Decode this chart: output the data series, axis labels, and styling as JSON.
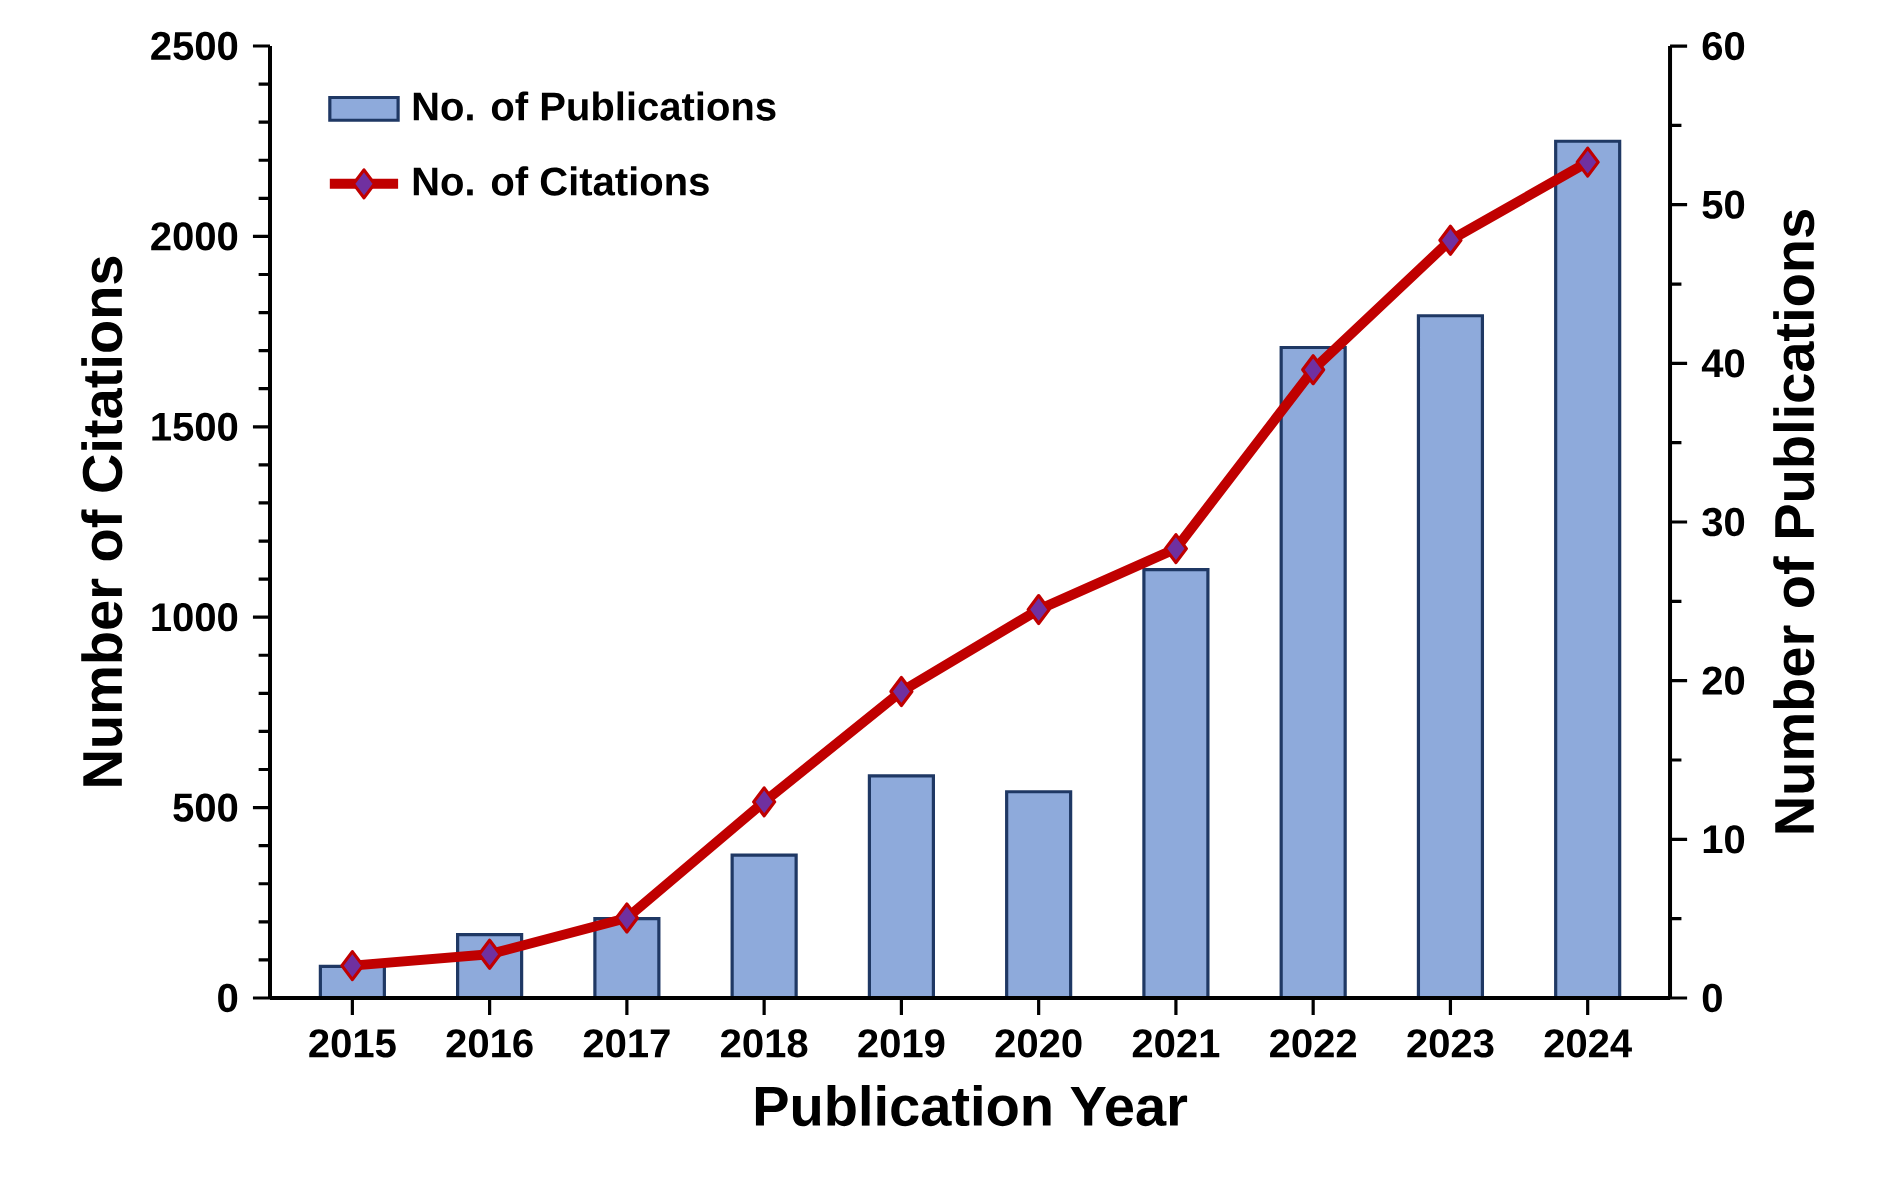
{
  "chart_data": {
    "type": "bar",
    "xlabel": "Publication Year",
    "ylabel": "Number of Citations",
    "y2label": "Number of Publications",
    "categories": [
      "2015",
      "2016",
      "2017",
      "2018",
      "2019",
      "2020",
      "2021",
      "2022",
      "2023",
      "2024"
    ],
    "series": [
      {
        "name": "No. of Publications",
        "axis": "y2",
        "color": "#8eaadb",
        "values": [
          2,
          4,
          5,
          9,
          14,
          13,
          27,
          41,
          43,
          54
        ]
      },
      {
        "name": "No. of Citations",
        "type": "line",
        "color": "#c00000",
        "marker": "diamond",
        "line_style": "solid",
        "values": [
          85,
          115,
          210,
          515,
          805,
          1020,
          1180,
          1650,
          1990,
          2195
        ]
      }
    ],
    "ylim": [
      0,
      2500
    ],
    "yticks": [
      0,
      500,
      1000,
      1500,
      2000,
      2500
    ],
    "y2lim": [
      0,
      60
    ],
    "y2ticks": [
      0,
      10,
      20,
      30,
      40,
      50,
      60
    ],
    "legend": "top left"
  }
}
